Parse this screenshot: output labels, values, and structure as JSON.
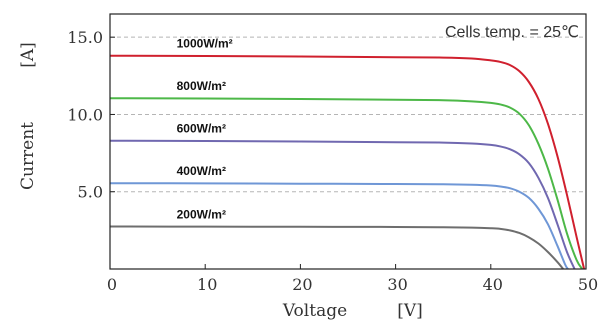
{
  "chart_data": {
    "type": "line",
    "title": "",
    "xlabel": "Voltage",
    "xunit": "[V]",
    "ylabel": "Current",
    "yunit": "[A]",
    "xlim": [
      0,
      50
    ],
    "ylim": [
      0,
      16.5
    ],
    "xticks": [
      "0",
      "10",
      "20",
      "30",
      "40",
      "50"
    ],
    "yticks": [
      "5.0",
      "10.0",
      "15.0"
    ],
    "grid": "horizontal dashed at 5, 10, 15",
    "annotation": "Cells temp. = 25℃",
    "series": [
      {
        "name": "1000W/m²",
        "color": "#d0202e",
        "points": [
          [
            0,
            13.8
          ],
          [
            10,
            13.78
          ],
          [
            20,
            13.75
          ],
          [
            30,
            13.7
          ],
          [
            35,
            13.68
          ],
          [
            38,
            13.62
          ],
          [
            40,
            13.5
          ],
          [
            41,
            13.4
          ],
          [
            42,
            13.2
          ],
          [
            43,
            12.8
          ],
          [
            44,
            12.1
          ],
          [
            45,
            11.0
          ],
          [
            46,
            9.4
          ],
          [
            47,
            7.3
          ],
          [
            48,
            4.8
          ],
          [
            49,
            2.1
          ],
          [
            49.8,
            0
          ]
        ]
      },
      {
        "name": "800W/m²",
        "color": "#4db848",
        "points": [
          [
            0,
            11.05
          ],
          [
            10,
            11.03
          ],
          [
            20,
            11.0
          ],
          [
            30,
            10.95
          ],
          [
            35,
            10.92
          ],
          [
            38,
            10.85
          ],
          [
            40,
            10.75
          ],
          [
            41,
            10.65
          ],
          [
            42,
            10.45
          ],
          [
            43,
            10.05
          ],
          [
            44,
            9.3
          ],
          [
            45,
            8.1
          ],
          [
            46,
            6.5
          ],
          [
            47,
            4.5
          ],
          [
            48,
            2.3
          ],
          [
            49,
            0.6
          ],
          [
            49.6,
            0
          ]
        ]
      },
      {
        "name": "600W/m²",
        "color": "#7068b0",
        "points": [
          [
            0,
            8.3
          ],
          [
            10,
            8.28
          ],
          [
            20,
            8.25
          ],
          [
            30,
            8.2
          ],
          [
            35,
            8.18
          ],
          [
            38,
            8.12
          ],
          [
            40,
            8.03
          ],
          [
            41,
            7.93
          ],
          [
            42,
            7.75
          ],
          [
            43,
            7.42
          ],
          [
            44,
            6.85
          ],
          [
            45,
            5.9
          ],
          [
            46,
            4.6
          ],
          [
            47,
            2.9
          ],
          [
            48,
            1.1
          ],
          [
            48.8,
            0
          ]
        ]
      },
      {
        "name": "400W/m²",
        "color": "#6f97d6",
        "points": [
          [
            0,
            5.55
          ],
          [
            10,
            5.54
          ],
          [
            20,
            5.52
          ],
          [
            30,
            5.5
          ],
          [
            35,
            5.48
          ],
          [
            38,
            5.45
          ],
          [
            40,
            5.4
          ],
          [
            41,
            5.34
          ],
          [
            42,
            5.23
          ],
          [
            43,
            5.0
          ],
          [
            44,
            4.6
          ],
          [
            45,
            3.9
          ],
          [
            46,
            2.9
          ],
          [
            47,
            1.5
          ],
          [
            47.8,
            0.3
          ],
          [
            48.1,
            0
          ]
        ]
      },
      {
        "name": "200W/m²",
        "color": "#6e6e6e",
        "points": [
          [
            0,
            2.75
          ],
          [
            10,
            2.74
          ],
          [
            20,
            2.73
          ],
          [
            30,
            2.72
          ],
          [
            35,
            2.7
          ],
          [
            38,
            2.68
          ],
          [
            40,
            2.64
          ],
          [
            41,
            2.6
          ],
          [
            42,
            2.5
          ],
          [
            43,
            2.33
          ],
          [
            44,
            2.05
          ],
          [
            45,
            1.65
          ],
          [
            46,
            1.1
          ],
          [
            47,
            0.45
          ],
          [
            47.6,
            0
          ]
        ]
      }
    ],
    "label_x": [
      7,
      7,
      7,
      7,
      7
    ]
  }
}
